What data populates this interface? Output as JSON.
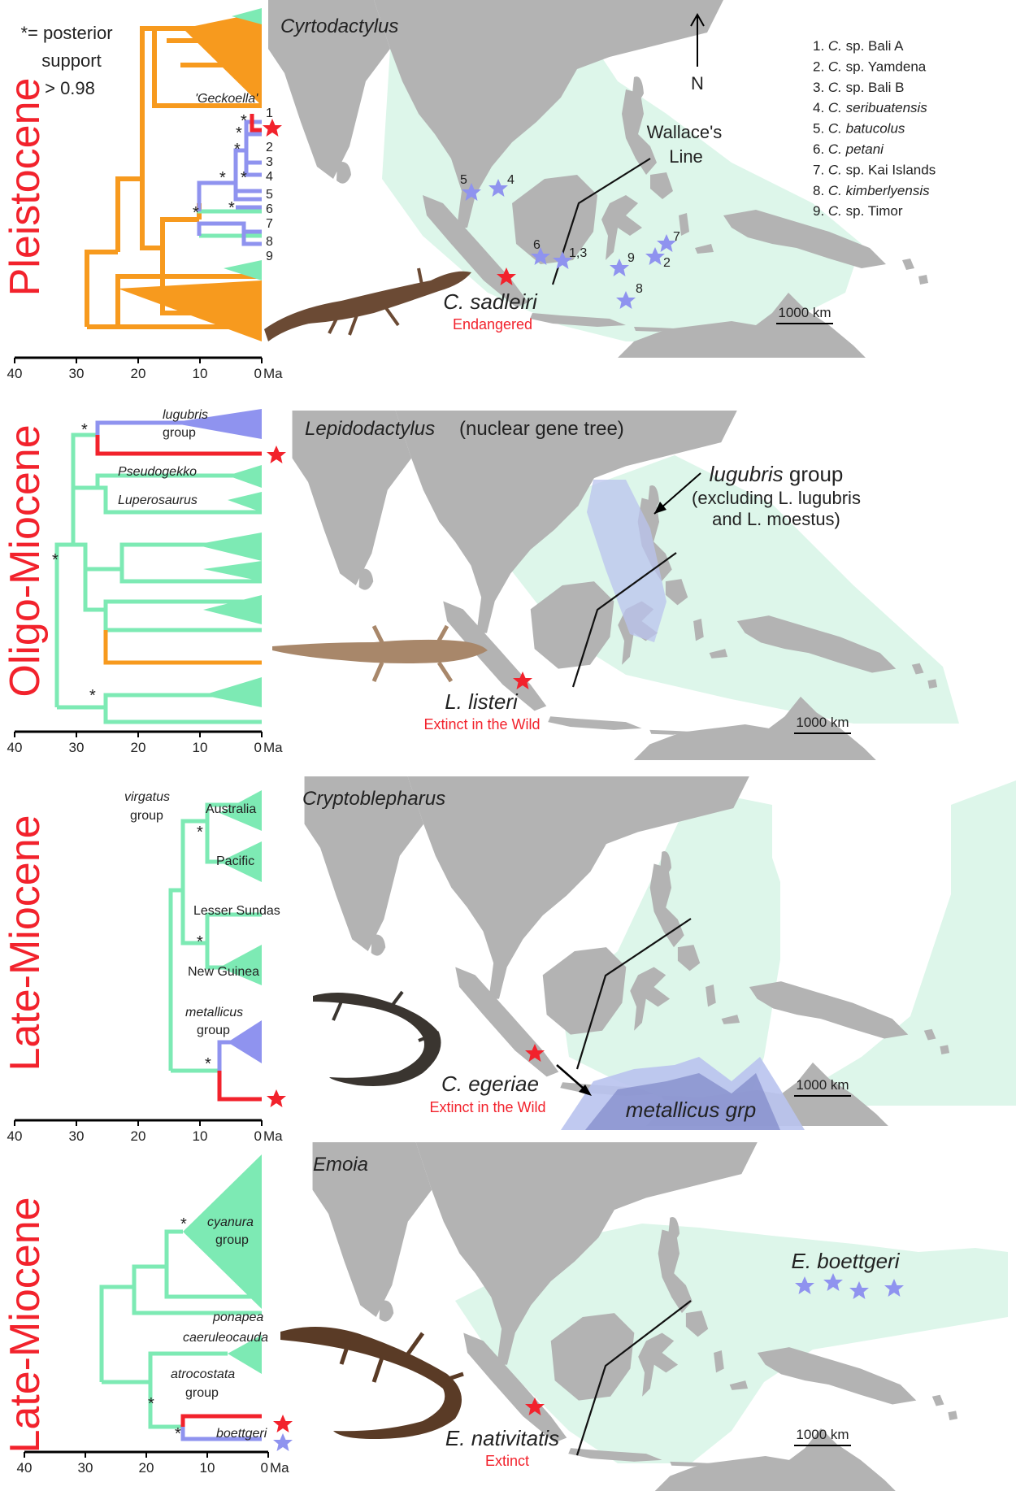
{
  "colors": {
    "outgroup": "#f79a1e",
    "ingroup": "#8f93ef",
    "other": "#7deab4",
    "focal": "#f2222c",
    "land": "#b3b3b3",
    "range_green": "#ddf6ea",
    "range_blue": "#b9c3ee"
  },
  "header_note": {
    "line1": "*= posterior",
    "line2": "support",
    "line3": "> 0.98"
  },
  "axis": {
    "ticks": [
      "40",
      "30",
      "20",
      "10",
      "0"
    ],
    "unit": "Ma"
  },
  "north_label": "N",
  "wallace_label": {
    "line1": "Wallace's",
    "line2": "Line"
  },
  "panels": [
    {
      "era": "Pleistocene",
      "map_title": "Cyrtodactylus",
      "map_title_extra": "",
      "tree_labels": {
        "geckoella": "'Geckoella'"
      },
      "tip_numbers": [
        "1",
        "2",
        "3",
        "4",
        "5",
        "6",
        "7",
        "8",
        "9"
      ],
      "legend": [
        {
          "num": "1.",
          "genus": "C.",
          "name": "sp. Bali A",
          "italic": false
        },
        {
          "num": "2.",
          "genus": "C.",
          "name": "sp. Yamdena",
          "italic": false
        },
        {
          "num": "3.",
          "genus": "C.",
          "name": "sp. Bali B",
          "italic": false
        },
        {
          "num": "4.",
          "genus": "C.",
          "name": "seribuatensis",
          "italic": true
        },
        {
          "num": "5.",
          "genus": "C.",
          "name": "batucolus",
          "italic": true
        },
        {
          "num": "6.",
          "genus": "C.",
          "name": "petani",
          "italic": true
        },
        {
          "num": "7.",
          "genus": "C.",
          "name": "sp. Kai Islands",
          "italic": false
        },
        {
          "num": "8.",
          "genus": "C.",
          "name": "kimberlyensis",
          "italic": true
        },
        {
          "num": "9.",
          "genus": "C.",
          "name": "sp. Timor",
          "italic": false
        }
      ],
      "map_star_labels": [
        "5",
        "4",
        "6",
        "1,3",
        "9",
        "7",
        "2",
        "8"
      ],
      "species": "C. sadleiri",
      "status": "Endangered",
      "scale": "1000 km"
    },
    {
      "era": "Oligo-Miocene",
      "map_title": "Lepidodactylus",
      "map_title_extra": "(nuclear gene tree)",
      "tree_labels": {
        "lugubris1": "lugubris",
        "lugubris2": "group",
        "pseudogekko": "Pseudogekko",
        "luperosaurus": "Luperosaurus"
      },
      "range_label": {
        "line1": "lugubris",
        "line1b": "group",
        "line2": "(excluding L. lugubris",
        "line3": "and L. moestus)"
      },
      "species": "L. listeri",
      "status": "Extinct in the Wild",
      "scale": "1000 km"
    },
    {
      "era": "Late-Miocene",
      "map_title": "Cryptoblepharus",
      "map_title_extra": "",
      "tree_labels": {
        "virgatus1": "virgatus",
        "virgatus2": "group",
        "australia": "Australia",
        "pacific": "Pacific",
        "lesser": "Lesser Sundas",
        "newguinea": "New Guinea",
        "metallicus1": "metallicus",
        "metallicus2": "group"
      },
      "range_label": "metallicus grp",
      "species": "C. egeriae",
      "status": "Extinct in the Wild",
      "scale": "1000 km"
    },
    {
      "era": "Late-Miocene",
      "map_title": "Emoia",
      "map_title_extra": "",
      "tree_labels": {
        "cyanura1": "cyanura",
        "cyanura2": "group",
        "ponapea": "ponapea",
        "caeruleocauda": "caeruleocauda",
        "atro1": "atrocostata",
        "atro2": "group",
        "boettgeri": "boettgeri"
      },
      "range_label": "E. boettgeri",
      "species": "E. nativitatis",
      "status": "Extinct",
      "scale": "1000 km"
    }
  ]
}
